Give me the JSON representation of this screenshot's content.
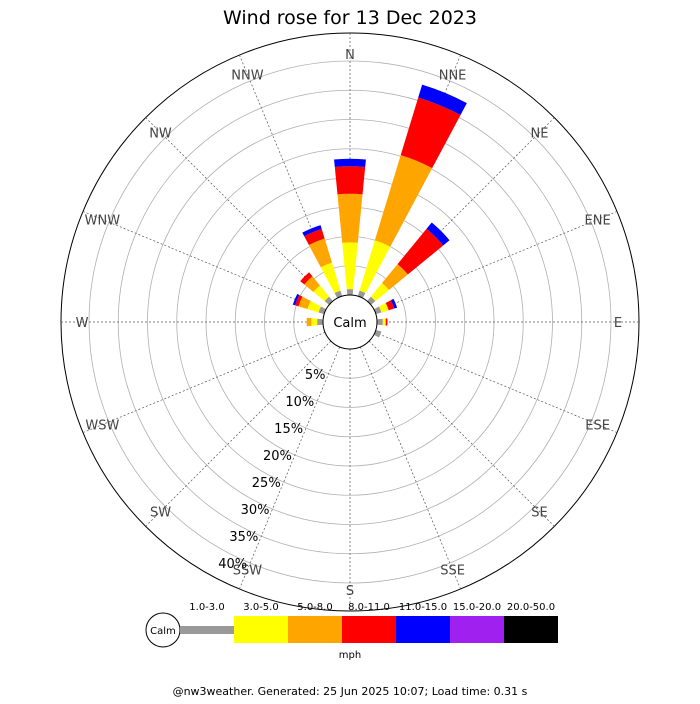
{
  "chart_data": {
    "type": "windrose",
    "title": "Wind rose for 13 Dec 2023",
    "directions": [
      "N",
      "NNE",
      "NE",
      "ENE",
      "E",
      "ESE",
      "SE",
      "SSE",
      "S",
      "SSW",
      "SW",
      "WSW",
      "W",
      "WNW",
      "NW",
      "NNW"
    ],
    "radial_ticks": [
      "5%",
      "10%",
      "15%",
      "20%",
      "25%",
      "30%",
      "35%",
      "40%"
    ],
    "radial_max": 40,
    "calm_label": "Calm",
    "unit": "mph",
    "speed_bins": [
      {
        "label": "1.0-3.0",
        "color": "#999999"
      },
      {
        "label": "3.0-5.0",
        "color": "#ffff00"
      },
      {
        "label": "5.0-8.0",
        "color": "#ffa500"
      },
      {
        "label": "8.0-11.0",
        "color": "#ff0000"
      },
      {
        "label": "11.0-15.0",
        "color": "#0000ff"
      },
      {
        "label": "15.0-20.0",
        "color": "#a020f0"
      },
      {
        "label": "20.0-50.0",
        "color": "#000000"
      }
    ],
    "series": [
      {
        "direction": "N",
        "cumulative": [
          1.0,
          9.0,
          17.3,
          22.0,
          23.3,
          23.3,
          23.3
        ]
      },
      {
        "direction": "NNE",
        "cumulative": [
          1.0,
          10.0,
          25.2,
          35.5,
          37.8,
          37.8,
          37.8
        ]
      },
      {
        "direction": "NE",
        "cumulative": [
          1.0,
          4.0,
          8.2,
          16.0,
          17.4,
          17.4,
          17.4
        ]
      },
      {
        "direction": "ENE",
        "cumulative": [
          1.0,
          2.3,
          2.3,
          3.3,
          3.8,
          3.8,
          3.8
        ]
      },
      {
        "direction": "E",
        "cumulative": [
          1.0,
          1.5,
          1.5,
          1.8,
          1.8,
          1.8,
          1.8
        ]
      },
      {
        "direction": "ESE",
        "cumulative": [
          1.0,
          1.0,
          1.0,
          1.0,
          1.0,
          1.0,
          1.0
        ]
      },
      {
        "direction": "SE",
        "cumulative": [
          0,
          0,
          0,
          0,
          0,
          0,
          0
        ]
      },
      {
        "direction": "SSE",
        "cumulative": [
          0,
          0,
          0,
          0,
          0,
          0,
          0
        ]
      },
      {
        "direction": "S",
        "cumulative": [
          0,
          0,
          0,
          0,
          0,
          0,
          0
        ]
      },
      {
        "direction": "SSW",
        "cumulative": [
          0,
          0,
          0,
          0,
          0,
          0,
          0
        ]
      },
      {
        "direction": "SW",
        "cumulative": [
          0,
          0,
          0,
          0,
          0,
          0,
          0
        ]
      },
      {
        "direction": "WSW",
        "cumulative": [
          0,
          0,
          0,
          0,
          0,
          0,
          0
        ]
      },
      {
        "direction": "W",
        "cumulative": [
          1.0,
          2.0,
          2.8,
          2.8,
          2.8,
          2.8,
          2.8
        ]
      },
      {
        "direction": "WNW",
        "cumulative": [
          1.0,
          3.0,
          4.6,
          5.2,
          5.6,
          5.6,
          5.6
        ]
      },
      {
        "direction": "NW",
        "cumulative": [
          1.0,
          3.5,
          5.5,
          6.4,
          6.4,
          6.4,
          6.4
        ]
      },
      {
        "direction": "NNW",
        "cumulative": [
          1.0,
          6.0,
          10.3,
          12.0,
          12.7,
          12.7,
          12.7
        ]
      }
    ]
  },
  "footer": "@nw3weather. Generated: 25 Jun 2025 10:07; Load time: 0.31 s"
}
